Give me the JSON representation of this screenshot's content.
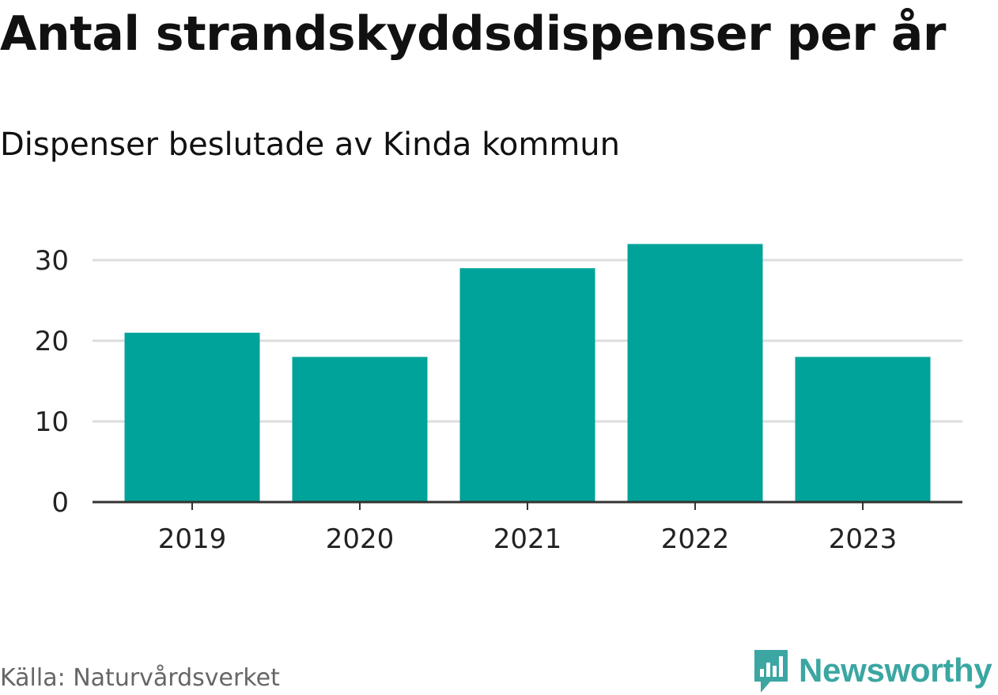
{
  "header": {
    "title": "Antal strandskyddsdispenser per år",
    "subtitle": "Dispenser beslutade av Kinda kommun"
  },
  "footer": {
    "source": "Källa: Naturvårdsverket",
    "brand": "Newsworthy",
    "brand_icon": "bar-chart-speech-icon"
  },
  "colors": {
    "bar": "#00a39a",
    "grid": "#dddddd",
    "axis": "#333333",
    "brand": "#3ba6a2"
  },
  "chart_data": {
    "type": "bar",
    "title": "Antal strandskyddsdispenser per år",
    "subtitle": "Dispenser beslutade av Kinda kommun",
    "categories": [
      "2019",
      "2020",
      "2021",
      "2022",
      "2023"
    ],
    "values": [
      21,
      18,
      29,
      32,
      18
    ],
    "xlabel": "",
    "ylabel": "",
    "ylim": [
      0,
      32
    ],
    "yticks": [
      0,
      10,
      20,
      30
    ],
    "grid": true
  }
}
